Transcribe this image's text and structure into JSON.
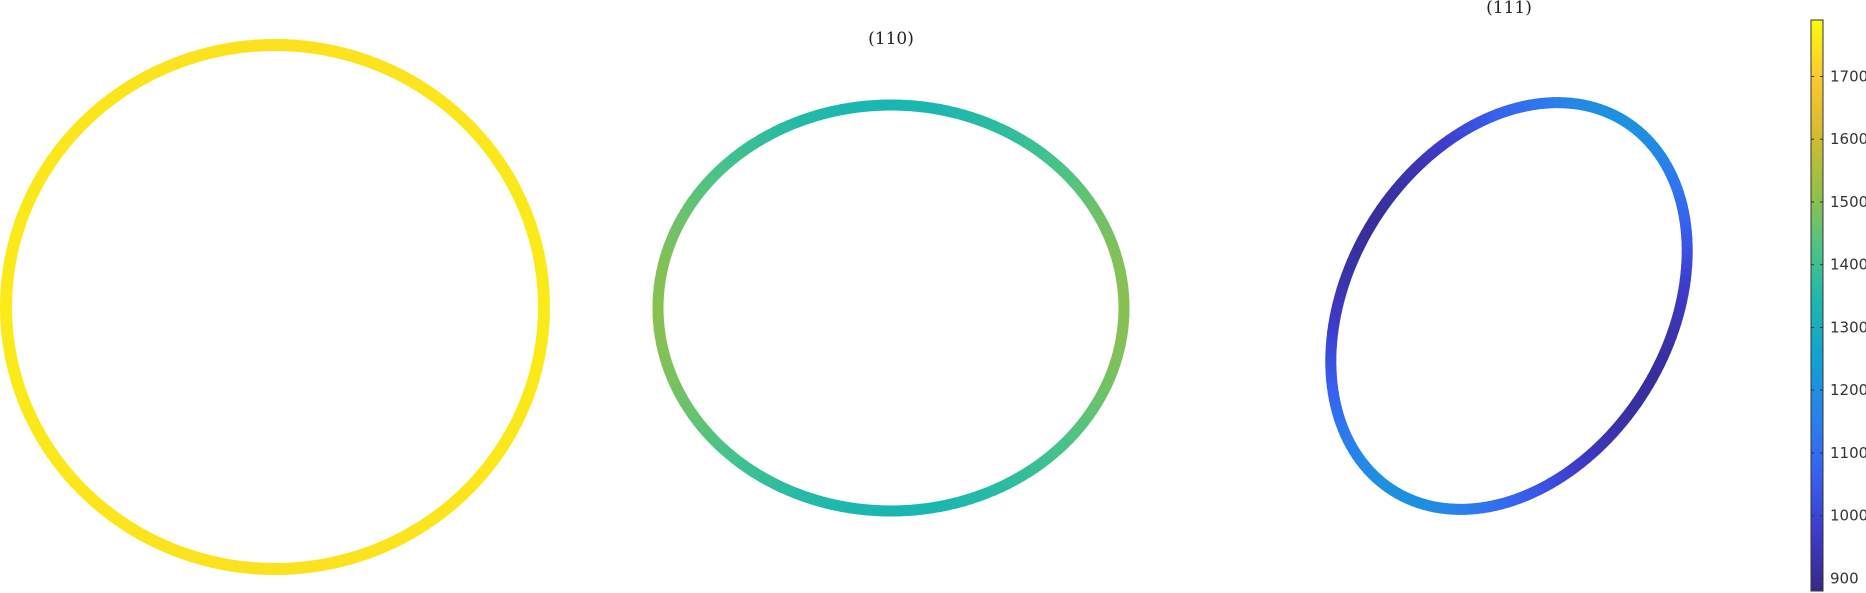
{
  "chart_data": [
    {
      "type": "polar-curve",
      "title": "",
      "value_range": [
        1745,
        1760
      ]
    },
    {
      "type": "polar-curve",
      "title": "(110)",
      "value_range": [
        1330,
        1500
      ]
    },
    {
      "type": "polar-curve",
      "title": "(111)",
      "value_range": [
        910,
        1200
      ]
    }
  ],
  "colorbar": {
    "colormap": "parula",
    "range": [
      880,
      1790
    ],
    "ticks": [
      "900",
      "1000",
      "1100",
      "1200",
      "1300",
      "1400",
      "1500",
      "1600",
      "1700"
    ]
  }
}
